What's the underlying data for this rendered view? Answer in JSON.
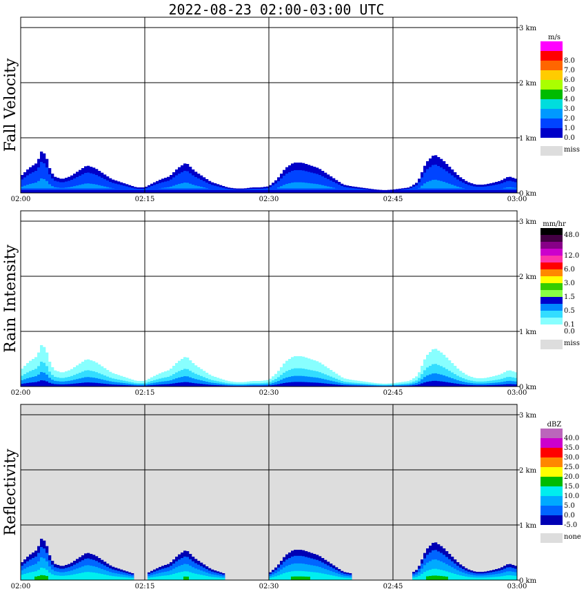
{
  "title": "2022-08-23   02:00-03:00 UTC",
  "time_ticks": [
    "02:00",
    "02:15",
    "02:30",
    "02:45",
    "03:00"
  ],
  "height_ticks": [
    "0 km",
    "1 km",
    "2 km",
    "3 km"
  ],
  "colors": {
    "missing": "#dddddd",
    "grid": "#000000"
  },
  "panels": [
    {
      "id": "fall-velocity",
      "label": "Fall Velocity",
      "legend": {
        "unit": "m/s",
        "bins": [
          {
            "color": "#0000c8",
            "label": "0.0"
          },
          {
            "color": "#0044ff",
            "label": "1.0"
          },
          {
            "color": "#0099ff",
            "label": "2.0"
          },
          {
            "color": "#00dddd",
            "label": "3.0"
          },
          {
            "color": "#00bb00",
            "label": "4.0"
          },
          {
            "color": "#aaff00",
            "label": "5.0"
          },
          {
            "color": "#ffcc00",
            "label": "6.0"
          },
          {
            "color": "#ff6600",
            "label": "7.0"
          },
          {
            "color": "#ff0000",
            "label": "8.0"
          },
          {
            "color": "#ff00ff",
            "label": ""
          }
        ],
        "missing_label": "miss"
      }
    },
    {
      "id": "rain-intensity",
      "label": "Rain Intensity",
      "legend": {
        "unit": "mm/hr",
        "bins": [
          {
            "color": "#ffffff",
            "label": "0.0"
          },
          {
            "color": "#88ffff",
            "label": "0.1"
          },
          {
            "color": "#33ddff",
            "label": ""
          },
          {
            "color": "#0088ff",
            "label": "0.5"
          },
          {
            "color": "#0000cc",
            "label": ""
          },
          {
            "color": "#88ff44",
            "label": "1.5"
          },
          {
            "color": "#33cc00",
            "label": ""
          },
          {
            "color": "#ffff00",
            "label": "3.0"
          },
          {
            "color": "#ff8800",
            "label": ""
          },
          {
            "color": "#ff0000",
            "label": "6.0"
          },
          {
            "color": "#ff33aa",
            "label": ""
          },
          {
            "color": "#cc00cc",
            "label": "12.0"
          },
          {
            "color": "#880088",
            "label": ""
          },
          {
            "color": "#440044",
            "label": ""
          },
          {
            "color": "#000000",
            "label": "48.0"
          }
        ],
        "missing_label": "miss"
      }
    },
    {
      "id": "reflectivity",
      "label": "Reflectivity",
      "legend": {
        "unit": "dBZ",
        "bins": [
          {
            "color": "#0000b4",
            "label": "-5.0"
          },
          {
            "color": "#0066ff",
            "label": "0.0"
          },
          {
            "color": "#00aaff",
            "label": "5.0"
          },
          {
            "color": "#00eeee",
            "label": "10.0"
          },
          {
            "color": "#00bb00",
            "label": "15.0"
          },
          {
            "color": "#ffff00",
            "label": "20.0"
          },
          {
            "color": "#ff8800",
            "label": "25.0"
          },
          {
            "color": "#ff0000",
            "label": "30.0"
          },
          {
            "color": "#cc00cc",
            "label": "35.0"
          },
          {
            "color": "#bb66bb",
            "label": "40.0"
          }
        ],
        "missing_label": "none"
      }
    }
  ],
  "chart_data": {
    "type": "heatmap",
    "x_axis": {
      "range": [
        "02:00",
        "03:00"
      ],
      "ticks": [
        "02:00",
        "02:15",
        "02:30",
        "02:45",
        "03:00"
      ]
    },
    "y_axis": {
      "range_km": [
        0,
        3
      ],
      "ticks": [
        "0 km",
        "1 km",
        "2 km",
        "3 km"
      ]
    },
    "echo_top_profile": {
      "minutes": [
        0,
        1,
        2,
        2.5,
        3,
        3.5,
        4,
        5,
        6,
        7,
        8,
        9,
        10,
        11,
        12,
        13,
        14,
        15,
        16,
        17,
        18,
        19,
        20,
        21,
        22,
        23,
        24,
        25,
        26,
        27,
        28,
        29,
        30,
        31,
        32,
        33,
        34,
        35,
        36,
        37,
        38,
        39,
        40,
        41,
        42,
        43,
        44,
        45,
        46,
        47,
        48,
        49,
        50,
        51,
        52,
        53,
        54,
        55,
        56,
        57,
        58,
        59,
        60
      ],
      "top_km": [
        0.3,
        0.45,
        0.55,
        0.75,
        0.7,
        0.45,
        0.3,
        0.25,
        0.3,
        0.4,
        0.5,
        0.45,
        0.35,
        0.25,
        0.2,
        0.15,
        0.1,
        0.1,
        0.18,
        0.25,
        0.3,
        0.45,
        0.55,
        0.4,
        0.3,
        0.2,
        0.15,
        0.1,
        0.08,
        0.08,
        0.1,
        0.1,
        0.12,
        0.25,
        0.45,
        0.55,
        0.55,
        0.5,
        0.45,
        0.35,
        0.25,
        0.15,
        0.12,
        0.1,
        0.08,
        0.06,
        0.05,
        0.06,
        0.08,
        0.1,
        0.2,
        0.55,
        0.7,
        0.6,
        0.45,
        0.3,
        0.2,
        0.15,
        0.15,
        0.18,
        0.22,
        0.3,
        0.25
      ]
    },
    "reflectivity_missing_above": "no echo (none)"
  }
}
